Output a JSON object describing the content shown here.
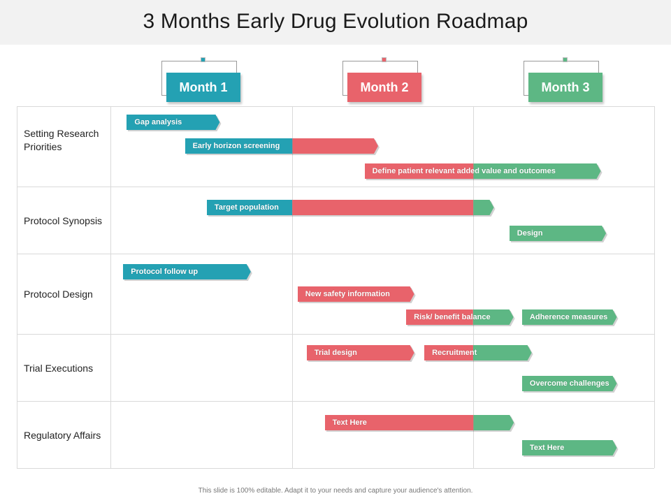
{
  "title": "3 Months Early Drug Evolution Roadmap",
  "colors": {
    "teal": "#24a1b3",
    "red": "#e8636b",
    "green": "#5db784",
    "grid": "#d9d9d9"
  },
  "months": [
    {
      "label": "Month 1",
      "color": "teal"
    },
    {
      "label": "Month 2",
      "color": "red"
    },
    {
      "label": "Month 3",
      "color": "green"
    }
  ],
  "rows": [
    {
      "label": "Setting Research Priorities"
    },
    {
      "label": "Protocol Synopsis"
    },
    {
      "label": "Protocol Design"
    },
    {
      "label": "Trial Executions"
    },
    {
      "label": "Regulatory Affairs"
    }
  ],
  "bars": [
    {
      "label": "Gap analysis",
      "row": 0,
      "lane": 0,
      "segments": [
        {
          "color": "teal",
          "start": 0.09,
          "end": 0.58
        }
      ]
    },
    {
      "label": "Early horizon screening",
      "row": 0,
      "lane": 1,
      "segments": [
        {
          "color": "teal",
          "start": 0.41,
          "end": 1.0
        },
        {
          "color": "red",
          "start": 1.0,
          "end": 1.45
        }
      ]
    },
    {
      "label": "Define patient relevant added value and outcomes",
      "row": 0,
      "lane": 2,
      "segments": [
        {
          "color": "red",
          "start": 1.4,
          "end": 2.0
        },
        {
          "color": "green",
          "start": 2.0,
          "end": 2.68
        }
      ]
    },
    {
      "label": "Target population",
      "row": 1,
      "lane": 0,
      "segments": [
        {
          "color": "teal",
          "start": 0.53,
          "end": 1.0
        },
        {
          "color": "red",
          "start": 1.0,
          "end": 2.0
        },
        {
          "color": "green",
          "start": 2.0,
          "end": 2.09
        }
      ]
    },
    {
      "label": "Design",
      "row": 1,
      "lane": 1,
      "segments": [
        {
          "color": "green",
          "start": 2.2,
          "end": 2.71
        }
      ]
    },
    {
      "label": "Protocol follow up",
      "row": 2,
      "lane": 0,
      "segments": [
        {
          "color": "teal",
          "start": 0.07,
          "end": 0.75
        }
      ]
    },
    {
      "label": "New safety information",
      "row": 2,
      "lane": 1,
      "segments": [
        {
          "color": "red",
          "start": 1.03,
          "end": 1.65
        }
      ]
    },
    {
      "label": "Risk/ benefit balance",
      "row": 2,
      "lane": 2,
      "segments": [
        {
          "color": "red",
          "start": 1.63,
          "end": 2.0
        },
        {
          "color": "green",
          "start": 2.0,
          "end": 2.2
        }
      ]
    },
    {
      "label": "Adherence measures",
      "row": 2,
      "lane": 2,
      "segments": [
        {
          "color": "green",
          "start": 2.27,
          "end": 2.77
        }
      ]
    },
    {
      "label": "Trial design",
      "row": 3,
      "lane": 0,
      "segments": [
        {
          "color": "red",
          "start": 1.08,
          "end": 1.65
        }
      ]
    },
    {
      "label": "Recruitment",
      "row": 3,
      "lane": 0,
      "segments": [
        {
          "color": "red",
          "start": 1.73,
          "end": 2.0
        },
        {
          "color": "green",
          "start": 2.0,
          "end": 2.3
        }
      ]
    },
    {
      "label": "Overcome challenges",
      "row": 3,
      "lane": 1,
      "segments": [
        {
          "color": "green",
          "start": 2.27,
          "end": 2.77
        }
      ]
    },
    {
      "label": "Text Here",
      "row": 4,
      "lane": 0,
      "segments": [
        {
          "color": "red",
          "start": 1.18,
          "end": 2.0
        },
        {
          "color": "green",
          "start": 2.0,
          "end": 2.2
        }
      ]
    },
    {
      "label": "Text Here",
      "row": 4,
      "lane": 1,
      "segments": [
        {
          "color": "green",
          "start": 2.27,
          "end": 2.77
        }
      ]
    }
  ],
  "footer": "This slide is 100% editable. Adapt it to your needs and capture your audience's attention."
}
